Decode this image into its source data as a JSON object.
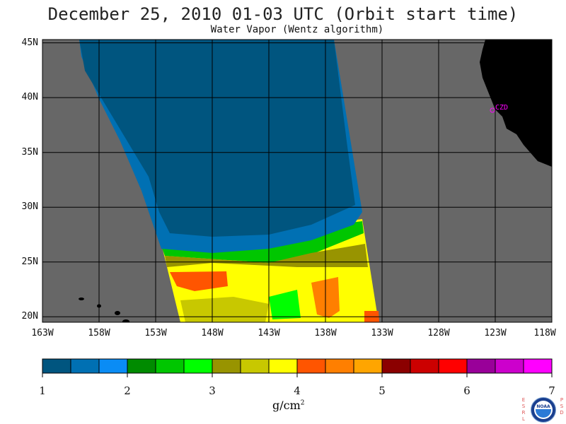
{
  "title": "December 25, 2010  01-03 UTC  (Orbit start time)",
  "subtitle": "Water Vapor (Wentz algorithm)",
  "map": {
    "lon_range": [
      -163,
      -118
    ],
    "lat_range": [
      19.5,
      45.3
    ],
    "lat_labels": [
      "45N",
      "40N",
      "35N",
      "30N",
      "25N",
      "20N"
    ],
    "lon_labels": [
      "163W",
      "158W",
      "153W",
      "148W",
      "143W",
      "138W",
      "133W",
      "128W",
      "123W",
      "118W"
    ],
    "station": "CZD",
    "colors": {
      "no_data": "#676767",
      "land": "#000000",
      "grid": "#000000",
      "station": "#ff00ff"
    }
  },
  "colorbar": {
    "colors": [
      "#00557f",
      "#0070b3",
      "#0a8cf5",
      "#008b00",
      "#00c600",
      "#00ff00",
      "#989400",
      "#c8c800",
      "#ffff00",
      "#ff5500",
      "#ff7f00",
      "#ffa500",
      "#8b0000",
      "#cc0000",
      "#ff0000",
      "#990099",
      "#cc00cc",
      "#ff00ff"
    ],
    "tick_labels": [
      "1",
      "2",
      "3",
      "4",
      "5",
      "6",
      "7"
    ],
    "min": 1,
    "max": 7,
    "units_base": "g/cm",
    "units_exp": "2"
  },
  "logo": {
    "text": "NOAA",
    "left_letters": "ESRL",
    "right_letters": "PSD"
  }
}
